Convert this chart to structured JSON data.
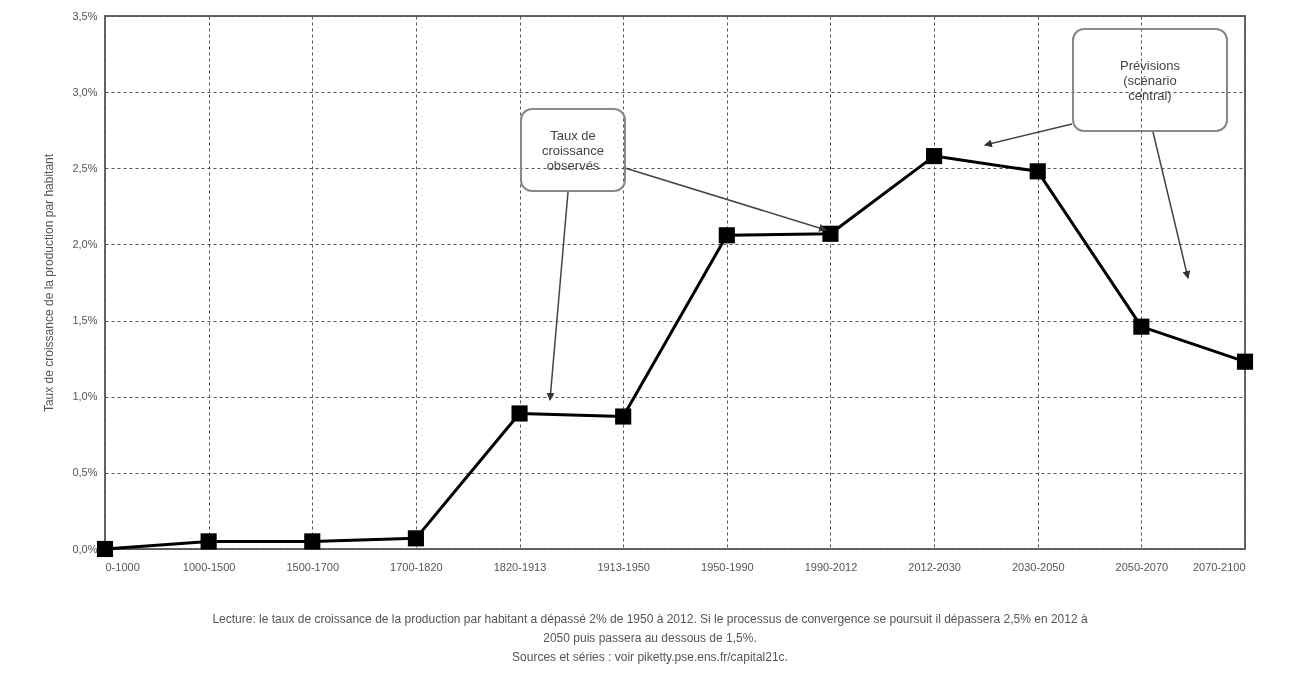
{
  "chart_data": {
    "type": "line",
    "ylabel": "Taux de croissance de la production par habitant",
    "categories": [
      "0-1000",
      "1000-1500",
      "1500-1700",
      "1700-1820",
      "1820-1913",
      "1913-1950",
      "1950-1990",
      "1990-2012",
      "2012-2030",
      "2030-2050",
      "2050-2070",
      "2070-2100"
    ],
    "series": [
      {
        "color": "#000000",
        "values": [
          0.0,
          0.05,
          0.05,
          0.07,
          0.89,
          0.87,
          2.06,
          2.07,
          2.58,
          2.48,
          1.46,
          1.23
        ]
      }
    ],
    "ylim": [
      0,
      3.5
    ],
    "yticks": [
      {
        "value": 0,
        "label": "0,0%"
      },
      {
        "value": 0.5,
        "label": "0,5%"
      },
      {
        "value": 1,
        "label": "1,0%"
      },
      {
        "value": 1.5,
        "label": "1,5%"
      },
      {
        "value": 2,
        "label": "2,0%"
      },
      {
        "value": 2.5,
        "label": "2,5%"
      },
      {
        "value": 3,
        "label": "3,0%"
      },
      {
        "value": 3.5,
        "label": "3,5%"
      }
    ],
    "grid": true,
    "marker": "square",
    "line_style": "solid",
    "annotations": [
      "Taux de croissance observés",
      "Prévisions (scénario central)",
      "Lecture: le taux de croissance de la production par habitant a dépassé 2% de 1950 à 2012. Si le processus de convergence se poursuit il dépassera 2,5% en 2012 à 2050 puis passera au dessous de 1,5%.",
      "Sources et séries : voir piketty.pse.ens.fr/capital21c."
    ]
  }
}
